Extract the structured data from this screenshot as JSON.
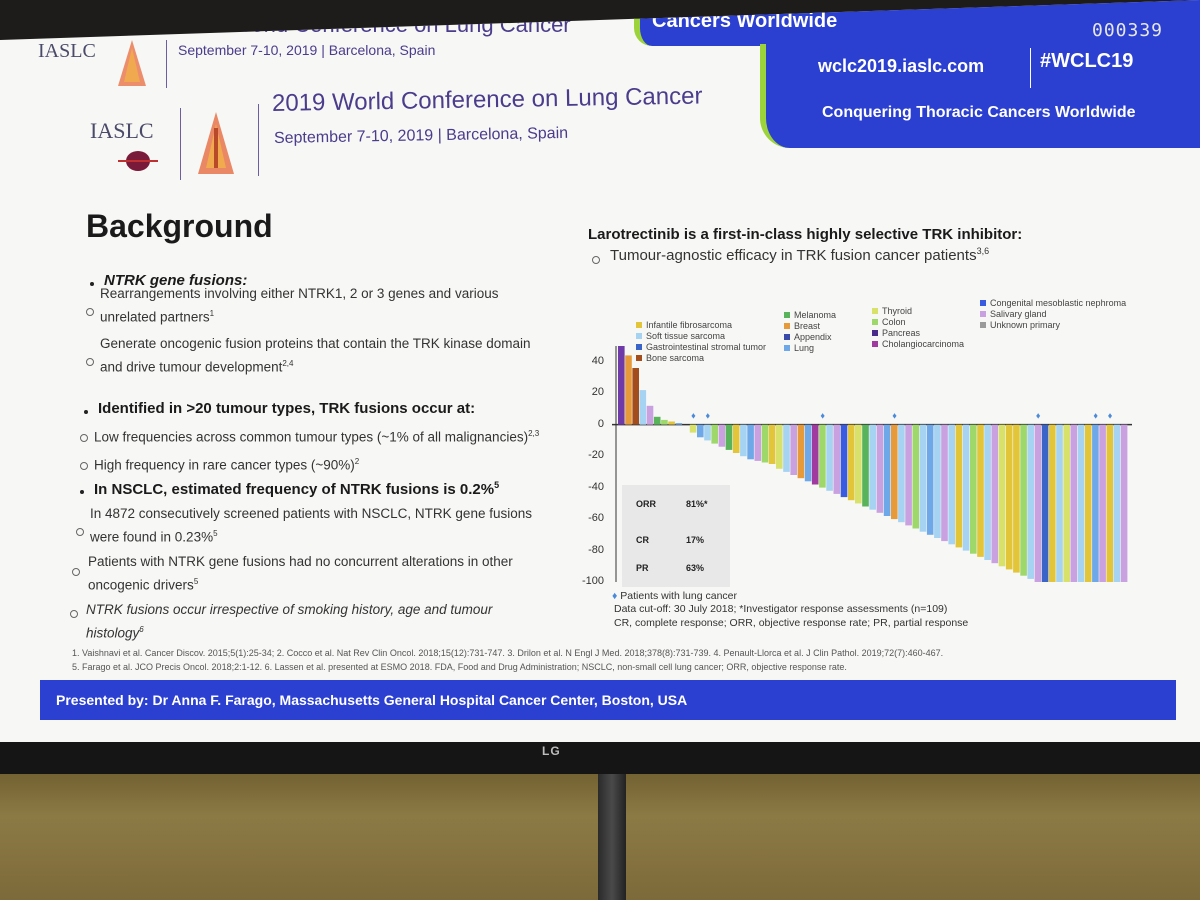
{
  "conference": {
    "org": "IASLC",
    "title": "2019 World Conference on Lung Cancer",
    "date": "September 7-10, 2019 | Barcelona, Spain"
  },
  "banner": {
    "url": "wclc2019.iaslc.com",
    "hashtag": "#WCLC19",
    "tagline": "Conquering Thoracic Cancers Worldwide",
    "partial_top": "Cancers Worldwide",
    "partial_top2": "Conquering",
    "counter": "000339"
  },
  "section": {
    "title": "Background"
  },
  "left": {
    "bullet1": "NTRK gene fusions:",
    "sub1a": "Rearrangements involving either NTRK1, 2 or 3 genes and various",
    "sub1a2": "unrelated partners",
    "sub1a_sup": "1",
    "sub1b": "Generate oncogenic fusion proteins that contain the TRK kinase domain",
    "sub1b2": "and drive tumour development",
    "sub1b_sup": "2,4",
    "bullet2": "Identified in >20 tumour types, TRK fusions occur at:",
    "sub2a": "Low frequencies across common tumour types (~1% of all malignancies)",
    "sub2a_sup": "2,3",
    "sub2b": "High frequency in rare cancer types (~90%)",
    "sub2b_sup": "2",
    "bullet3": "In NSCLC, estimated frequency of NTRK fusions is 0.2%",
    "bullet3_sup": "5",
    "sub3a": "In 4872 consecutively screened patients with NSCLC, NTRK gene fusions",
    "sub3a2": "were found in 0.23%",
    "sub3a_sup": "5",
    "sub3b": "Patients with NTRK gene fusions had no concurrent alterations in other",
    "sub3b2": "oncogenic drivers",
    "sub3b_sup": "5",
    "sub3c": "NTRK fusions occur irrespective of smoking history, age and tumour",
    "sub3c2": "histology",
    "sub3c_sup": "6"
  },
  "right": {
    "title": "Larotrectinib is a first-in-class highly selective TRK inhibitor:",
    "sub": "Tumour-agnostic efficacy in TRK fusion cancer patients",
    "sub_sup": "3,6"
  },
  "chart_data": {
    "type": "bar",
    "title": "",
    "ylabel": "",
    "ylim": [
      -100,
      50
    ],
    "yticks": [
      "40",
      "20",
      "0",
      "-20",
      "-40",
      "-60",
      "-80",
      "-100"
    ],
    "legend": [
      {
        "label": "Infantile fibrosarcoma",
        "color": "#e3c53a"
      },
      {
        "label": "Soft tissue sarcoma",
        "color": "#a6d3f2"
      },
      {
        "label": "Gastrointestinal stromal tumor",
        "color": "#3b64c8"
      },
      {
        "label": "Bone sarcoma",
        "color": "#a34c1c"
      },
      {
        "label": "Melanoma",
        "color": "#58b35a"
      },
      {
        "label": "Breast",
        "color": "#e69a3a"
      },
      {
        "label": "Appendix",
        "color": "#3a4aa8"
      },
      {
        "label": "Lung",
        "color": "#6fa8e8"
      },
      {
        "label": "Thyroid",
        "color": "#d8e26a"
      },
      {
        "label": "Colon",
        "color": "#9ed86a"
      },
      {
        "label": "Pancreas",
        "color": "#4a2a8a"
      },
      {
        "label": "Cholangiocarcinoma",
        "color": "#a03aa0"
      },
      {
        "label": "Congenital mesoblastic nephroma",
        "color": "#3a5ae0"
      },
      {
        "label": "Salivary gland",
        "color": "#c9a0e0"
      },
      {
        "label": "Unknown primary",
        "color": "#9a9a9a"
      }
    ],
    "values": [
      50,
      44,
      36,
      22,
      12,
      5,
      3,
      2,
      1,
      0,
      -5,
      -8,
      -10,
      -12,
      -14,
      -16,
      -18,
      -20,
      -22,
      -23,
      -24,
      -25,
      -28,
      -30,
      -32,
      -34,
      -36,
      -38,
      -40,
      -42,
      -44,
      -46,
      -48,
      -50,
      -52,
      -54,
      -56,
      -58,
      -60,
      -62,
      -64,
      -66,
      -68,
      -70,
      -72,
      -74,
      -76,
      -78,
      -80,
      -82,
      -84,
      -86,
      -88,
      -90,
      -92,
      -94,
      -96,
      -98,
      -100,
      -100,
      -100,
      -100,
      -100,
      -100,
      -100,
      -100,
      -100,
      -100,
      -100,
      -100,
      -100
    ],
    "colors": [
      "#6e3aa8",
      "#e69a3a",
      "#a34c1c",
      "#a6d3f2",
      "#c9a0e0",
      "#58b35a",
      "#9ed86a",
      "#e3c53a",
      "#6fa8e8",
      "#a03aa0",
      "#d8e26a",
      "#6fa8e8",
      "#a6d3f2",
      "#9ed86a",
      "#c9a0e0",
      "#58b35a",
      "#e3c53a",
      "#a6d3f2",
      "#6fa8e8",
      "#c9a0e0",
      "#9ed86a",
      "#e3c53a",
      "#d8e26a",
      "#a6d3f2",
      "#c9a0e0",
      "#e69a3a",
      "#6fa8e8",
      "#a03aa0",
      "#9ed86a",
      "#a6d3f2",
      "#c9a0e0",
      "#3a5ae0",
      "#e3c53a",
      "#d8e26a",
      "#58b35a",
      "#a6d3f2",
      "#c9a0e0",
      "#6fa8e8",
      "#e69a3a",
      "#a6d3f2",
      "#c9a0e0",
      "#9ed86a",
      "#a6d3f2",
      "#6fa8e8",
      "#a6d3f2",
      "#c9a0e0",
      "#a6d3f2",
      "#e3c53a",
      "#a6d3f2",
      "#9ed86a",
      "#e3c53a",
      "#a6d3f2",
      "#c9a0e0",
      "#d8e26a",
      "#e3c53a",
      "#e3c53a",
      "#9ed86a",
      "#a6d3f2",
      "#c9a0e0",
      "#3a64c8",
      "#e3c53a",
      "#a6d3f2",
      "#d8e26a",
      "#c9a0e0",
      "#a6d3f2",
      "#e3c53a",
      "#6fa8e8",
      "#c9a0e0",
      "#e3c53a",
      "#a6d3f2",
      "#c9a0e0"
    ],
    "lung_markers": [
      10,
      12,
      28,
      38,
      58,
      66,
      68
    ],
    "stats": [
      {
        "label": "ORR",
        "value": "81%*"
      },
      {
        "label": "CR",
        "value": "17%"
      },
      {
        "label": "PR",
        "value": "63%"
      }
    ],
    "notes": {
      "marker": "Patients with lung cancer",
      "cutoff": "Data cut-off: 30 July 2018; *Investigator response assessments (n=109)",
      "abbrev": "CR, complete response; ORR, objective response rate; PR, partial response"
    }
  },
  "references": {
    "line1": "1. Vaishnavi et al. Cancer Discov. 2015;5(1):25-34; 2. Cocco et al. Nat Rev Clin Oncol. 2018;15(12):731-747. 3. Drilon et al. N Engl J Med. 2018;378(8):731-739. 4. Penault-Llorca et al. J Clin Pathol. 2019;72(7):460-467.",
    "line2": "5. Farago et al. JCO Precis Oncol. 2018;2:1-12. 6. Lassen et al. presented at ESMO 2018. FDA, Food and Drug Administration; NSCLC, non-small cell lung cancer; ORR, objective response rate."
  },
  "footer": {
    "presenter": "Presented by: Dr Anna F. Farago, Massachusetts General Hospital Cancer Center, Boston, USA"
  },
  "monitor": {
    "brand": "LG"
  }
}
